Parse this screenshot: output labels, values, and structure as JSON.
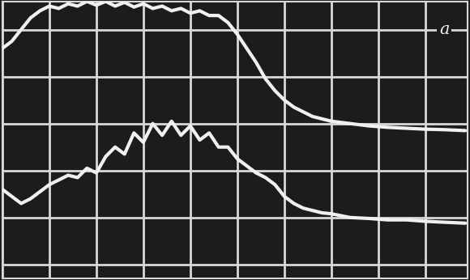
{
  "chart_data": {
    "type": "line",
    "series": [
      {
        "name": "a",
        "color": "#f0f0f0",
        "line_style": "solid",
        "x": [
          0,
          0.2,
          0.4,
          0.6,
          0.8,
          1.0,
          1.2,
          1.4,
          1.6,
          1.8,
          2.0,
          2.2,
          2.4,
          2.6,
          2.8,
          3.0,
          3.2,
          3.4,
          3.6,
          3.8,
          4.0,
          4.2,
          4.4,
          4.6,
          4.8,
          5.0,
          5.2,
          5.4,
          5.6,
          5.8,
          6.0,
          6.2,
          6.4,
          6.6,
          6.8,
          7.0,
          7.4,
          7.8,
          8.2,
          8.6,
          9.0,
          9.4,
          9.85
        ],
        "values": [
          4.6,
          4.75,
          5.0,
          5.25,
          5.4,
          5.5,
          5.45,
          5.55,
          5.5,
          5.6,
          5.52,
          5.6,
          5.5,
          5.58,
          5.48,
          5.55,
          5.45,
          5.5,
          5.4,
          5.45,
          5.35,
          5.4,
          5.3,
          5.3,
          5.15,
          4.9,
          4.6,
          4.3,
          3.95,
          3.7,
          3.5,
          3.35,
          3.25,
          3.15,
          3.1,
          3.05,
          3.0,
          2.95,
          2.92,
          2.9,
          2.88,
          2.87,
          2.85
        ]
      },
      {
        "color": "#f0f0f0",
        "line_style": "solid",
        "x": [
          0,
          0.2,
          0.4,
          0.6,
          0.8,
          1.0,
          1.2,
          1.4,
          1.6,
          1.8,
          2.0,
          2.2,
          2.4,
          2.6,
          2.8,
          3.0,
          3.2,
          3.4,
          3.6,
          3.8,
          4.0,
          4.2,
          4.4,
          4.6,
          4.8,
          5.0,
          5.2,
          5.4,
          5.6,
          5.8,
          6.0,
          6.2,
          6.4,
          6.6,
          6.8,
          7.0,
          7.4,
          7.8,
          8.2,
          8.6,
          9.0,
          9.4,
          9.85
        ],
        "values": [
          1.6,
          1.45,
          1.3,
          1.4,
          1.55,
          1.7,
          1.8,
          1.9,
          1.85,
          2.05,
          1.95,
          2.3,
          2.5,
          2.35,
          2.8,
          2.6,
          3.0,
          2.75,
          3.05,
          2.75,
          2.95,
          2.65,
          2.8,
          2.5,
          2.5,
          2.25,
          2.1,
          1.95,
          1.85,
          1.7,
          1.45,
          1.3,
          1.2,
          1.15,
          1.1,
          1.08,
          1.0,
          0.98,
          0.95,
          0.95,
          0.92,
          0.9,
          0.88
        ]
      }
    ],
    "annotations": [
      {
        "text": "a",
        "x": 9.4,
        "y": 5
      }
    ],
    "xlim": [
      0,
      9.9
    ],
    "ylim": [
      -0.3,
      5.6
    ],
    "xticks": [
      0,
      1,
      2,
      3,
      4,
      5,
      6,
      7,
      8,
      9
    ],
    "yticks": [
      0,
      1,
      2,
      3,
      4,
      5
    ],
    "grid": true,
    "tick_labels": false
  }
}
